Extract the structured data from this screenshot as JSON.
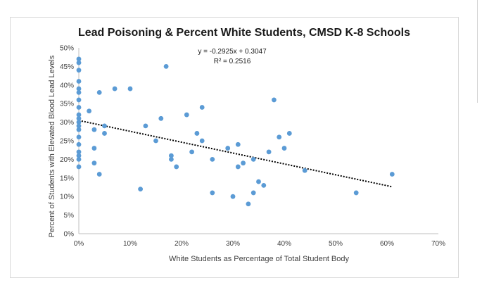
{
  "chart_data": {
    "type": "scatter",
    "title": "Lead Poisoning & Percent White Students, CMSD K-8 Schools",
    "xlabel": "White Students as Percentage of Total Student Body",
    "ylabel": "Percent of Students with Elevated Blood Lead Levels",
    "xlim": [
      0,
      0.7
    ],
    "ylim": [
      0,
      0.5
    ],
    "x_ticks": [
      "0%",
      "10%",
      "20%",
      "30%",
      "40%",
      "50%",
      "60%",
      "70%"
    ],
    "y_ticks": [
      "0%",
      "5%",
      "10%",
      "15%",
      "20%",
      "25%",
      "30%",
      "35%",
      "40%",
      "45%",
      "50%"
    ],
    "grid": false,
    "marker_color": "#5b9bd5",
    "trendline": {
      "style": "dotted",
      "color": "#000000",
      "slope": -0.2925,
      "intercept": 0.3047,
      "x_range": [
        0,
        0.61
      ],
      "equation": "y = -0.2925x + 0.3047",
      "r_squared": "R² = 0.2516"
    },
    "points": [
      {
        "x": 0.0,
        "y": 0.47
      },
      {
        "x": 0.0,
        "y": 0.46
      },
      {
        "x": 0.0,
        "y": 0.44
      },
      {
        "x": 0.0,
        "y": 0.41
      },
      {
        "x": 0.0,
        "y": 0.39
      },
      {
        "x": 0.0,
        "y": 0.38
      },
      {
        "x": 0.0,
        "y": 0.36
      },
      {
        "x": 0.0,
        "y": 0.34
      },
      {
        "x": 0.0,
        "y": 0.32
      },
      {
        "x": 0.0,
        "y": 0.31
      },
      {
        "x": 0.0,
        "y": 0.3
      },
      {
        "x": 0.0,
        "y": 0.29
      },
      {
        "x": 0.0,
        "y": 0.28
      },
      {
        "x": 0.0,
        "y": 0.26
      },
      {
        "x": 0.0,
        "y": 0.24
      },
      {
        "x": 0.0,
        "y": 0.22
      },
      {
        "x": 0.0,
        "y": 0.21
      },
      {
        "x": 0.0,
        "y": 0.2
      },
      {
        "x": 0.0,
        "y": 0.18
      },
      {
        "x": 0.02,
        "y": 0.33
      },
      {
        "x": 0.03,
        "y": 0.28
      },
      {
        "x": 0.03,
        "y": 0.23
      },
      {
        "x": 0.03,
        "y": 0.19
      },
      {
        "x": 0.04,
        "y": 0.38
      },
      {
        "x": 0.04,
        "y": 0.16
      },
      {
        "x": 0.05,
        "y": 0.29
      },
      {
        "x": 0.05,
        "y": 0.27
      },
      {
        "x": 0.07,
        "y": 0.39
      },
      {
        "x": 0.1,
        "y": 0.39
      },
      {
        "x": 0.12,
        "y": 0.12
      },
      {
        "x": 0.13,
        "y": 0.29
      },
      {
        "x": 0.15,
        "y": 0.25
      },
      {
        "x": 0.16,
        "y": 0.31
      },
      {
        "x": 0.17,
        "y": 0.45
      },
      {
        "x": 0.18,
        "y": 0.21
      },
      {
        "x": 0.18,
        "y": 0.2
      },
      {
        "x": 0.19,
        "y": 0.18
      },
      {
        "x": 0.21,
        "y": 0.32
      },
      {
        "x": 0.22,
        "y": 0.22
      },
      {
        "x": 0.23,
        "y": 0.27
      },
      {
        "x": 0.24,
        "y": 0.34
      },
      {
        "x": 0.24,
        "y": 0.25
      },
      {
        "x": 0.26,
        "y": 0.2
      },
      {
        "x": 0.26,
        "y": 0.11
      },
      {
        "x": 0.29,
        "y": 0.23
      },
      {
        "x": 0.3,
        "y": 0.1
      },
      {
        "x": 0.31,
        "y": 0.24
      },
      {
        "x": 0.31,
        "y": 0.18
      },
      {
        "x": 0.32,
        "y": 0.19
      },
      {
        "x": 0.33,
        "y": 0.08
      },
      {
        "x": 0.34,
        "y": 0.2
      },
      {
        "x": 0.34,
        "y": 0.11
      },
      {
        "x": 0.35,
        "y": 0.14
      },
      {
        "x": 0.36,
        "y": 0.13
      },
      {
        "x": 0.37,
        "y": 0.22
      },
      {
        "x": 0.38,
        "y": 0.36
      },
      {
        "x": 0.39,
        "y": 0.26
      },
      {
        "x": 0.4,
        "y": 0.23
      },
      {
        "x": 0.41,
        "y": 0.27
      },
      {
        "x": 0.44,
        "y": 0.17
      },
      {
        "x": 0.54,
        "y": 0.11
      },
      {
        "x": 0.61,
        "y": 0.16
      }
    ]
  }
}
